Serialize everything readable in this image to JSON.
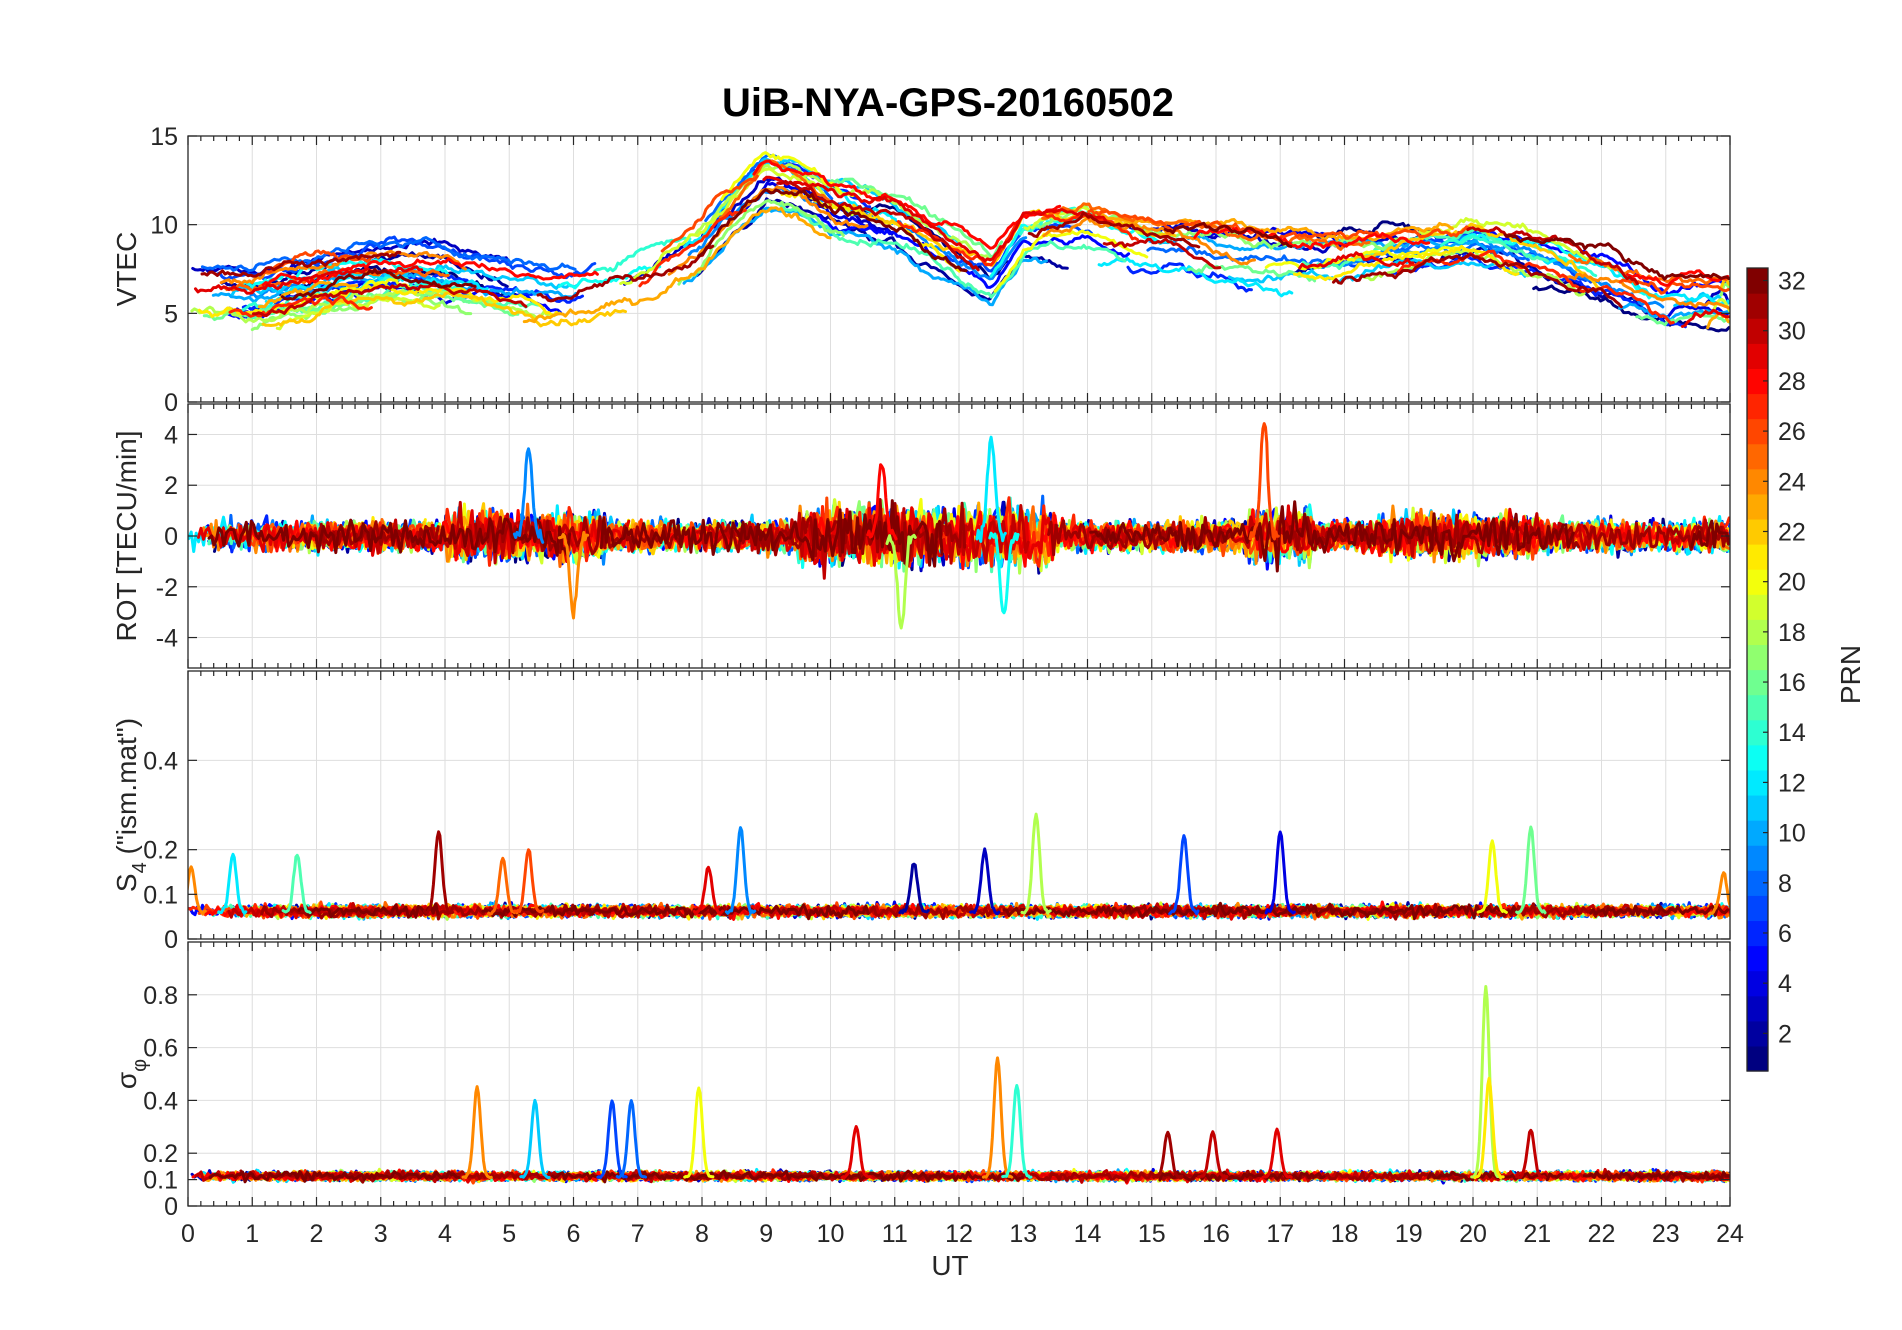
{
  "chart_data": {
    "title": "UiB-NYA-GPS-20160502",
    "xlabel": "UT",
    "x_range": [
      0,
      24
    ],
    "x_ticks": [
      "0",
      "1",
      "2",
      "3",
      "4",
      "5",
      "6",
      "7",
      "8",
      "9",
      "10",
      "11",
      "12",
      "13",
      "14",
      "15",
      "16",
      "17",
      "18",
      "19",
      "20",
      "21",
      "22",
      "23",
      "24"
    ],
    "grid": true,
    "panels": [
      {
        "type": "line",
        "ylabel": "VTEC",
        "ylim": [
          0,
          15
        ],
        "y_ticks": [
          0,
          5,
          10,
          15
        ],
        "series_note": "one trace per PRN 1-32, colored by PRN",
        "envelope": {
          "x": [
            0,
            1,
            2,
            3,
            4,
            5,
            6,
            7,
            8,
            8.5,
            9,
            9.5,
            10,
            11,
            12,
            12.5,
            13,
            14,
            15,
            16,
            17,
            18,
            19,
            20,
            21,
            22,
            23,
            24
          ],
          "y": [
            6.5,
            6,
            6.5,
            7,
            7,
            6.5,
            6.5,
            7,
            9,
            11,
            12.5,
            12,
            11,
            10,
            8,
            7,
            9.5,
            10,
            9,
            8.5,
            8,
            8,
            8.5,
            9,
            8,
            7,
            5.5,
            6
          ]
        }
      },
      {
        "type": "line",
        "ylabel": "ROT [TECU/min]",
        "ylim": [
          -5.2,
          5.2
        ],
        "y_ticks": [
          -4,
          -2,
          0,
          2,
          4
        ],
        "series_note": "one trace per PRN 1-32, colored by PRN",
        "peaks": [
          {
            "x": 5.3,
            "y": 3.5,
            "prn": 9
          },
          {
            "x": 6.0,
            "y": -3.0,
            "prn": 24
          },
          {
            "x": 10.8,
            "y": 3.0,
            "prn": 28
          },
          {
            "x": 11.1,
            "y": -3.8,
            "prn": 18
          },
          {
            "x": 12.5,
            "y": 4.0,
            "prn": 12
          },
          {
            "x": 12.7,
            "y": -3.2,
            "prn": 13
          },
          {
            "x": 16.75,
            "y": 4.6,
            "prn": 26
          }
        ]
      },
      {
        "type": "line",
        "ylabel": "S4 (\"ism.mat\")",
        "ylabel_main": "S",
        "ylabel_sub": "4",
        "ylabel_rest": " (\"ism.mat\")",
        "ylim": [
          0,
          0.6
        ],
        "y_ticks": [
          0,
          0.1,
          0.2,
          0.4
        ],
        "series_note": "one trace per PRN 1-32, colored by PRN",
        "peaks": [
          {
            "x": 0.05,
            "y": 0.16,
            "prn": 24
          },
          {
            "x": 0.7,
            "y": 0.19,
            "prn": 12
          },
          {
            "x": 1.7,
            "y": 0.19,
            "prn": 15
          },
          {
            "x": 3.9,
            "y": 0.24,
            "prn": 31
          },
          {
            "x": 4.9,
            "y": 0.18,
            "prn": 25
          },
          {
            "x": 5.3,
            "y": 0.2,
            "prn": 26
          },
          {
            "x": 8.6,
            "y": 0.25,
            "prn": 9
          },
          {
            "x": 8.1,
            "y": 0.16,
            "prn": 29
          },
          {
            "x": 11.3,
            "y": 0.17,
            "prn": 2
          },
          {
            "x": 12.4,
            "y": 0.2,
            "prn": 3
          },
          {
            "x": 13.2,
            "y": 0.28,
            "prn": 18
          },
          {
            "x": 15.5,
            "y": 0.23,
            "prn": 7
          },
          {
            "x": 17.0,
            "y": 0.24,
            "prn": 4
          },
          {
            "x": 20.3,
            "y": 0.22,
            "prn": 20
          },
          {
            "x": 20.9,
            "y": 0.25,
            "prn": 16
          },
          {
            "x": 23.9,
            "y": 0.15,
            "prn": 24
          }
        ]
      },
      {
        "type": "line",
        "ylabel": "σφ",
        "ylabel_main": "σ",
        "ylabel_sub": "φ",
        "ylim": [
          0,
          1
        ],
        "y_ticks": [
          0,
          0.1,
          0.2,
          0.4,
          0.6,
          0.8
        ],
        "series_note": "one trace per PRN 1-32, colored by PRN",
        "peaks": [
          {
            "x": 4.5,
            "y": 0.45,
            "prn": 24
          },
          {
            "x": 5.4,
            "y": 0.4,
            "prn": 11
          },
          {
            "x": 6.6,
            "y": 0.4,
            "prn": 7
          },
          {
            "x": 6.9,
            "y": 0.4,
            "prn": 8
          },
          {
            "x": 7.95,
            "y": 0.45,
            "prn": 20
          },
          {
            "x": 10.4,
            "y": 0.3,
            "prn": 29
          },
          {
            "x": 12.6,
            "y": 0.56,
            "prn": 24
          },
          {
            "x": 12.9,
            "y": 0.46,
            "prn": 14
          },
          {
            "x": 15.25,
            "y": 0.28,
            "prn": 31
          },
          {
            "x": 15.95,
            "y": 0.28,
            "prn": 30
          },
          {
            "x": 16.95,
            "y": 0.29,
            "prn": 29
          },
          {
            "x": 20.2,
            "y": 0.83,
            "prn": 18
          },
          {
            "x": 20.25,
            "y": 0.48,
            "prn": 21
          },
          {
            "x": 20.9,
            "y": 0.29,
            "prn": 30
          }
        ]
      }
    ],
    "colorbar": {
      "label": "PRN",
      "range": [
        1,
        32
      ],
      "ticks": [
        "2",
        "4",
        "6",
        "8",
        "10",
        "12",
        "14",
        "16",
        "18",
        "20",
        "22",
        "24",
        "26",
        "28",
        "30",
        "32"
      ],
      "colormap": "jet"
    },
    "colors": {
      "axes": "#262626",
      "grid": "#dedede"
    }
  }
}
